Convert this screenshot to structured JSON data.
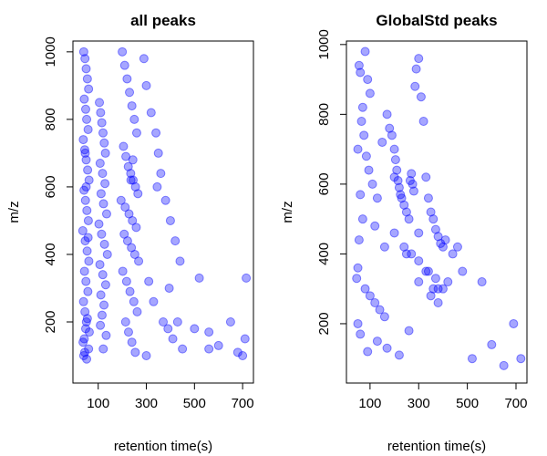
{
  "chart_data": [
    {
      "type": "scatter",
      "title": "all peaks",
      "xlabel": "retention time(s)",
      "ylabel": "m/z",
      "color": "#0000FF",
      "xlim": [
        -5,
        745
      ],
      "ylim": [
        19,
        1032
      ],
      "xticks": [
        100,
        300,
        500,
        700
      ],
      "yticks": [
        200,
        400,
        600,
        800,
        1000
      ],
      "x": [
        40,
        45,
        50,
        55,
        60,
        42,
        48,
        52,
        58,
        38,
        44,
        50,
        56,
        62,
        41,
        47,
        53,
        59,
        36,
        46,
        54,
        61,
        43,
        49,
        57,
        39,
        45,
        51,
        63,
        37,
        44,
        52,
        60,
        42,
        48,
        55,
        50,
        46,
        58,
        40,
        105,
        110,
        115,
        120,
        125,
        130,
        108,
        118,
        128,
        112,
        122,
        135,
        103,
        114,
        126,
        138,
        107,
        119,
        131,
        111,
        124,
        116,
        109,
        133,
        121,
        200,
        210,
        220,
        230,
        240,
        250,
        260,
        205,
        215,
        225,
        235,
        245,
        255,
        265,
        195,
        212,
        228,
        242,
        258,
        208,
        222,
        238,
        252,
        268,
        202,
        218,
        232,
        248,
        262,
        214,
        226,
        240,
        254,
        236,
        244,
        290,
        300,
        320,
        340,
        350,
        360,
        380,
        400,
        420,
        440,
        310,
        330,
        370,
        390,
        410,
        450,
        300,
        345,
        395,
        430,
        500,
        520,
        560,
        560,
        600,
        650,
        680,
        700,
        710,
        715
      ],
      "y": [
        1000,
        980,
        950,
        920,
        890,
        860,
        830,
        800,
        770,
        740,
        710,
        680,
        650,
        620,
        590,
        560,
        530,
        500,
        470,
        440,
        410,
        380,
        350,
        320,
        290,
        260,
        230,
        200,
        170,
        140,
        110,
        90,
        120,
        150,
        180,
        210,
        600,
        700,
        450,
        100,
        850,
        820,
        790,
        760,
        730,
        700,
        670,
        640,
        610,
        580,
        550,
        520,
        490,
        460,
        430,
        400,
        370,
        340,
        310,
        280,
        250,
        220,
        190,
        160,
        120,
        1000,
        960,
        920,
        880,
        840,
        800,
        760,
        720,
        690,
        660,
        640,
        620,
        600,
        580,
        560,
        540,
        520,
        500,
        480,
        460,
        440,
        420,
        400,
        380,
        350,
        320,
        290,
        260,
        230,
        200,
        170,
        140,
        110,
        620,
        680,
        980,
        900,
        820,
        760,
        700,
        640,
        560,
        500,
        440,
        380,
        320,
        260,
        200,
        180,
        150,
        120,
        100,
        600,
        300,
        200,
        180,
        330,
        170,
        120,
        130,
        200,
        110,
        100,
        150,
        330
      ]
    },
    {
      "type": "scatter",
      "title": "GlobalStd peaks",
      "xlabel": "retention time(s)",
      "ylabel": "m/z",
      "color": "#0000FF",
      "xlim": [
        3,
        745
      ],
      "ylim": [
        30,
        1010
      ],
      "xticks": [
        100,
        300,
        500,
        700
      ],
      "yticks": [
        200,
        400,
        600,
        800,
        1000
      ],
      "x": [
        55,
        60,
        80,
        90,
        100,
        70,
        65,
        75,
        50,
        85,
        95,
        110,
        130,
        150,
        170,
        180,
        190,
        200,
        205,
        210,
        215,
        220,
        225,
        230,
        240,
        250,
        260,
        265,
        270,
        275,
        280,
        285,
        290,
        300,
        310,
        320,
        330,
        340,
        350,
        360,
        370,
        380,
        390,
        400,
        60,
        70,
        55,
        50,
        45,
        80,
        100,
        120,
        140,
        160,
        200,
        240,
        270,
        300,
        340,
        360,
        380,
        50,
        60,
        90,
        130,
        170,
        220,
        260,
        300,
        330,
        370,
        410,
        440,
        480,
        520,
        560,
        600,
        650,
        690,
        720,
        350,
        380,
        400,
        420,
        460,
        300,
        200,
        250,
        120,
        160
      ],
      "y": [
        940,
        920,
        980,
        900,
        860,
        820,
        780,
        740,
        700,
        680,
        640,
        600,
        560,
        720,
        800,
        760,
        740,
        700,
        670,
        640,
        610,
        590,
        570,
        560,
        540,
        520,
        500,
        610,
        630,
        600,
        580,
        880,
        930,
        960,
        850,
        780,
        620,
        560,
        520,
        500,
        470,
        450,
        430,
        420,
        570,
        500,
        440,
        360,
        330,
        300,
        280,
        260,
        240,
        220,
        460,
        420,
        400,
        380,
        350,
        300,
        260,
        200,
        170,
        120,
        150,
        130,
        110,
        180,
        320,
        350,
        330,
        440,
        400,
        350,
        100,
        320,
        140,
        80,
        200,
        100,
        280,
        300,
        300,
        320,
        420,
        460,
        620,
        400,
        480,
        420
      ]
    }
  ]
}
